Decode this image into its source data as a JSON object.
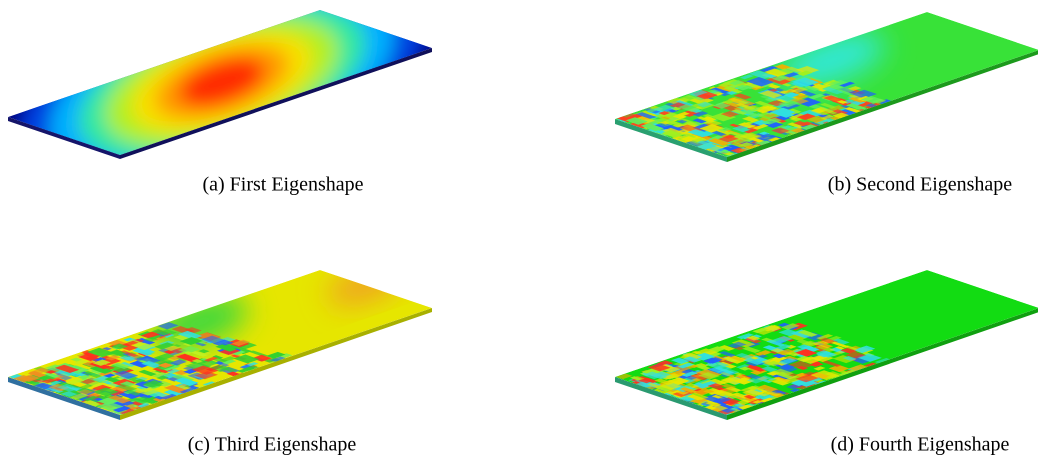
{
  "captions": [
    "(a) First Eigenshape",
    "(b) Second Eigenshape",
    "(c) Third Eigenshape",
    "(d) Fourth Eigenshape"
  ]
}
